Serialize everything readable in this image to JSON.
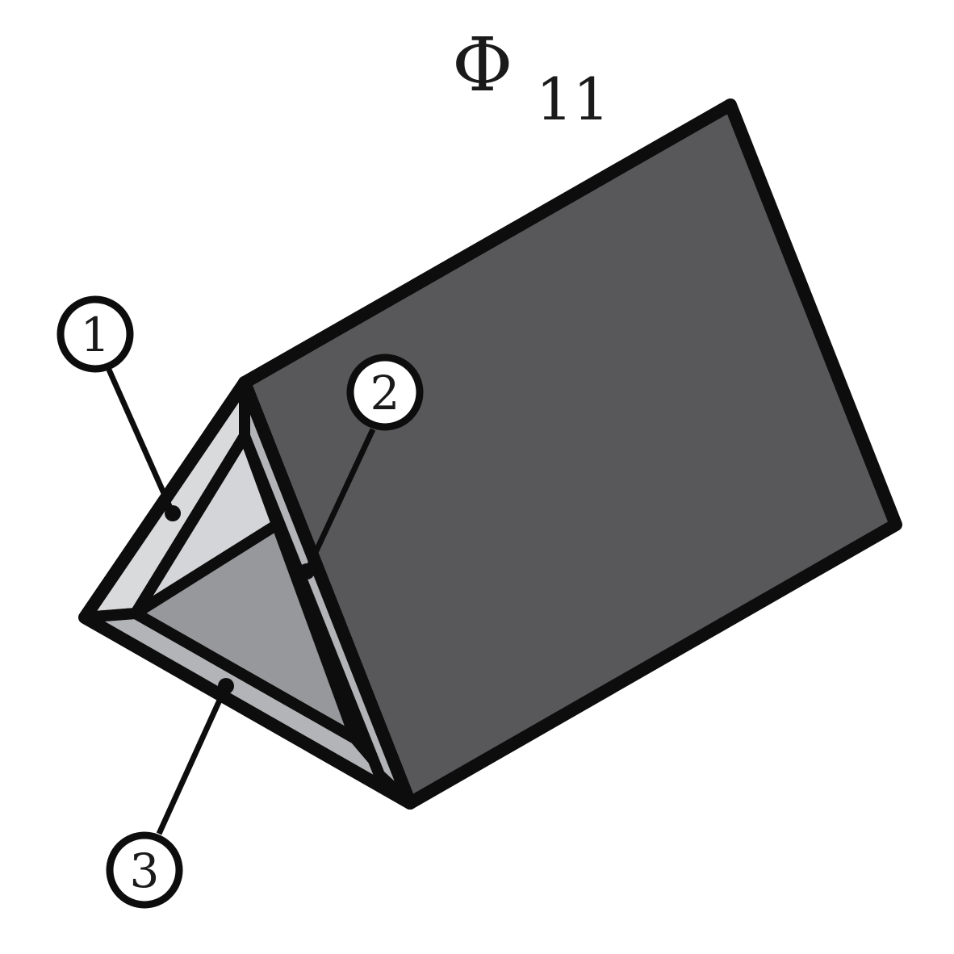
{
  "title": {
    "symbol": "Φ",
    "subscript": "11"
  },
  "callouts": [
    {
      "number": "1",
      "target": "left-face-inner-edge"
    },
    {
      "number": "2",
      "target": "apex-ridge-edge"
    },
    {
      "number": "3",
      "target": "bottom-face-inner-edge"
    }
  ],
  "colors": {
    "outline": "#0d0d0d",
    "top_face": "#58585b",
    "inner_back_face": "#97989b",
    "inner_left_face": "#d4d5d8",
    "edge_strip_light": "#d9dadc",
    "edge_strip_mid": "#b3b4b7",
    "background": "#ffffff"
  }
}
